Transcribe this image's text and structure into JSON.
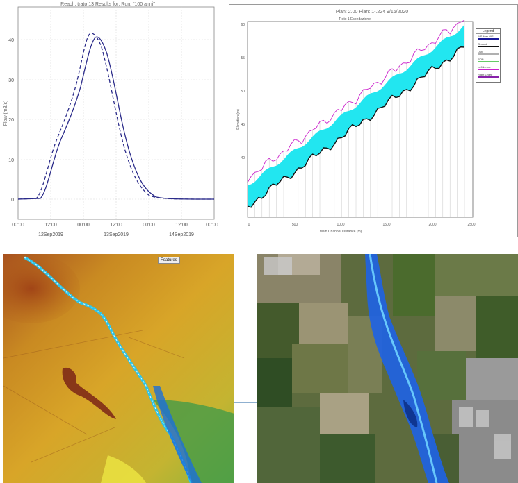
{
  "hydrograph": {
    "title": "Reach: trato 13  Results for: Run: \"100 anni\"",
    "ylabel": "Flow (m3/s)",
    "yticks": [
      "40",
      "30",
      "20",
      "10",
      "0"
    ],
    "xticks": [
      "00:00",
      "12:00",
      "00:00",
      "12:00",
      "00:00",
      "12:00",
      "00:00"
    ],
    "dates": [
      "12Sep2019",
      "13Sep2019",
      "14Sep2019"
    ],
    "line_color": "#2b2b8a"
  },
  "profile": {
    "title": "Plan: 2.00   Plan: 1-.224   9/16/2020",
    "subtitle": "Trato 1 Esondazione",
    "ylabel": "Elevation (m)",
    "xlabel": "Main Channel Distance (m)",
    "yticks": [
      "60",
      "55",
      "50",
      "45",
      "40"
    ],
    "xticks": [
      "0",
      "500",
      "1000",
      "1500",
      "2000",
      "2500"
    ],
    "water_color": "#22e6f0",
    "ground_color": "#111111",
    "bank_color": "#cc22cc",
    "legend": {
      "title": "Legend",
      "items": [
        {
          "label": "WS Max WS",
          "color": "#1a1a9a"
        },
        {
          "label": "Ground",
          "color": "#111111"
        },
        {
          "label": "LOB",
          "color": "#b0b0b0"
        },
        {
          "label": "ROB",
          "color": "#66cc66"
        },
        {
          "label": "Left Levee",
          "color": "#cc22cc"
        },
        {
          "label": "Right Levee",
          "color": "#8822aa"
        }
      ]
    }
  },
  "terrain_map": {
    "features_label": "Features"
  },
  "flood_map": {
    "water_color": "#1e63e6"
  }
}
